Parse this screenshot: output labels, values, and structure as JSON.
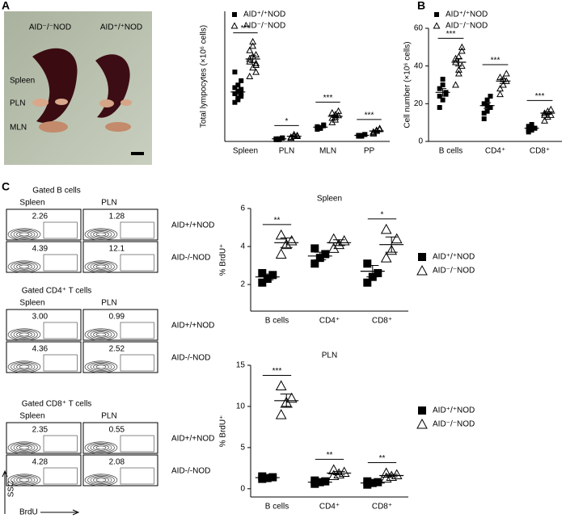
{
  "panels": [
    "A",
    "B",
    "C"
  ],
  "photo": {
    "columns": [
      "AID⁻/⁻NOD",
      "AID⁺/⁺NOD"
    ],
    "rows": [
      "Spleen",
      "PLN",
      "MLN"
    ]
  },
  "chart_data": [
    {
      "type": "dot",
      "ylabel": "Total lympocytes (×10⁶ cells)",
      "categories": [
        "Spleen",
        "PLN",
        "MLN",
        "PP"
      ],
      "ylim": [
        0,
        150
      ],
      "annotations": [
        "***",
        "*",
        "***",
        "***"
      ],
      "series": [
        {
          "name": "AID⁺/⁺NOD",
          "color": "#000000",
          "marker": "filled-square",
          "values": [
            57,
            3,
            16.5,
            7
          ],
          "errors": [
            3,
            0.5,
            0.7,
            0.4
          ],
          "points": [
            [
              45,
              50,
              52,
              55,
              58,
              60,
              62,
              65,
              70,
              80,
              48,
              55
            ],
            [
              2,
              3,
              4,
              3,
              2,
              4
            ],
            [
              14,
              16,
              18,
              17,
              15,
              19,
              16
            ],
            [
              6,
              7,
              8,
              7,
              6,
              8
            ]
          ]
        },
        {
          "name": "AID⁻/⁻NOD",
          "color": "#000000",
          "marker": "open-triangle",
          "values": [
            95,
            6,
            29,
            12
          ],
          "errors": [
            4,
            0.6,
            1.5,
            0.8
          ],
          "points": [
            [
              75,
              85,
              90,
              95,
              98,
              100,
              105,
              110,
              88,
              92,
              115,
              80
            ],
            [
              4,
              6,
              7,
              5,
              8,
              6
            ],
            [
              22,
              25,
              30,
              33,
              28,
              35,
              27,
              31
            ],
            [
              9,
              12,
              14,
              11,
              13,
              15,
              10
            ]
          ]
        }
      ]
    },
    {
      "type": "dot",
      "ylabel": "Cell number (×10⁶ cells)",
      "categories": [
        "B cells",
        "CD4⁺",
        "CD8⁺"
      ],
      "ylim": [
        0,
        60
      ],
      "yticks": [
        0,
        20,
        40,
        60
      ],
      "annotations": [
        "***",
        "***",
        "***"
      ],
      "series": [
        {
          "name": "AID⁺/⁺NOD",
          "color": "#000000",
          "marker": "filled-square",
          "values": [
            26,
            19,
            7
          ],
          "errors": [
            2,
            1.5,
            0.5
          ],
          "points": [
            [
              18,
              22,
              25,
              28,
              30,
              26,
              24,
              33
            ],
            [
              12,
              16,
              18,
              20,
              22,
              24,
              15,
              19
            ],
            [
              5,
              6,
              7,
              8,
              9,
              7,
              6
            ]
          ]
        },
        {
          "name": "AID⁻/⁻NOD",
          "color": "#000000",
          "marker": "open-triangle",
          "values": [
            42,
            32,
            15
          ],
          "errors": [
            2,
            1.3,
            0.7
          ],
          "points": [
            [
              30,
              36,
              40,
              42,
              45,
              48,
              44,
              38,
              50
            ],
            [
              25,
              30,
              32,
              34,
              33,
              36,
              28
            ],
            [
              11,
              13,
              14,
              15,
              16,
              17,
              14
            ]
          ]
        }
      ]
    },
    {
      "type": "dot",
      "title": "Spleen",
      "ylabel": "% BrdU⁺",
      "categories": [
        "B cells",
        "CD4⁺",
        "CD8⁺"
      ],
      "ylim": [
        0.6,
        6
      ],
      "yticks": [
        2,
        4,
        6
      ],
      "annotations": [
        "**",
        null,
        "*"
      ],
      "series": [
        {
          "name": "AID⁺/⁺NOD",
          "color": "#000000",
          "marker": "filled-square",
          "values": [
            2.4,
            3.5,
            2.7
          ],
          "errors": [
            0.15,
            0.2,
            0.3
          ],
          "points": [
            [
              2.1,
              2.3,
              2.5,
              2.6
            ],
            [
              3.1,
              3.4,
              3.6,
              3.9
            ],
            [
              2.1,
              2.4,
              2.6,
              3.1
            ]
          ]
        },
        {
          "name": "AID⁻/⁻NOD",
          "color": "#000000",
          "marker": "open-triangle",
          "values": [
            4.2,
            4.2,
            4.1
          ],
          "errors": [
            0.25,
            0.15,
            0.4
          ],
          "points": [
            [
              3.6,
              4.1,
              4.3,
              4.6
            ],
            [
              3.9,
              4.1,
              4.3,
              4.4
            ],
            [
              3.4,
              3.8,
              4.4,
              4.9
            ]
          ]
        }
      ]
    },
    {
      "type": "dot",
      "title": "PLN",
      "ylabel": "% BrdU⁺",
      "categories": [
        "B cells",
        "CD4⁺",
        "CD8⁺"
      ],
      "ylim": [
        -1,
        15
      ],
      "yticks": [
        0,
        5,
        10,
        15
      ],
      "annotations": [
        "***",
        "**",
        "**"
      ],
      "series": [
        {
          "name": "AID⁺/⁺NOD",
          "color": "#000000",
          "marker": "filled-square",
          "values": [
            1.35,
            0.8,
            0.7
          ],
          "errors": [
            0.08,
            0.1,
            0.1
          ],
          "points": [
            [
              1.2,
              1.3,
              1.4,
              1.5
            ],
            [
              0.6,
              0.8,
              0.9,
              1.0
            ],
            [
              0.5,
              0.7,
              0.8,
              0.9
            ]
          ]
        },
        {
          "name": "AID⁻/⁻NOD",
          "color": "#000000",
          "marker": "open-triangle",
          "values": [
            10.7,
            1.9,
            1.6
          ],
          "errors": [
            0.8,
            0.2,
            0.15
          ],
          "points": [
            [
              9,
              10.5,
              11,
              12.5
            ],
            [
              1.6,
              1.8,
              2.0,
              2.3
            ],
            [
              1.3,
              1.5,
              1.7,
              1.9
            ]
          ]
        }
      ]
    }
  ],
  "flow": {
    "y_label": "SSC",
    "x_label": "BrdU",
    "groups": [
      {
        "title": "Gated B cells",
        "columns": [
          "Spleen",
          "PLN"
        ],
        "rows": [
          {
            "label": "AID+/+NOD",
            "values": [
              "2.26",
              "1.28"
            ]
          },
          {
            "label": "AID-/-NOD",
            "values": [
              "4.39",
              "12.1"
            ]
          }
        ]
      },
      {
        "title": "Gated CD4⁺ T cells",
        "columns": [
          "Spleen",
          "PLN"
        ],
        "rows": [
          {
            "label": "AID+/+NOD",
            "values": [
              "3.00",
              "0.99"
            ]
          },
          {
            "label": "AID-/-NOD",
            "values": [
              "4.36",
              "2.52"
            ]
          }
        ]
      },
      {
        "title": "Gated CD8⁺ T cells",
        "columns": [
          "Spleen",
          "PLN"
        ],
        "rows": [
          {
            "label": "AID+/+NOD",
            "values": [
              "2.35",
              "0.55"
            ]
          },
          {
            "label": "AID-/-NOD",
            "values": [
              "4.28",
              "2.08"
            ]
          }
        ]
      }
    ]
  }
}
